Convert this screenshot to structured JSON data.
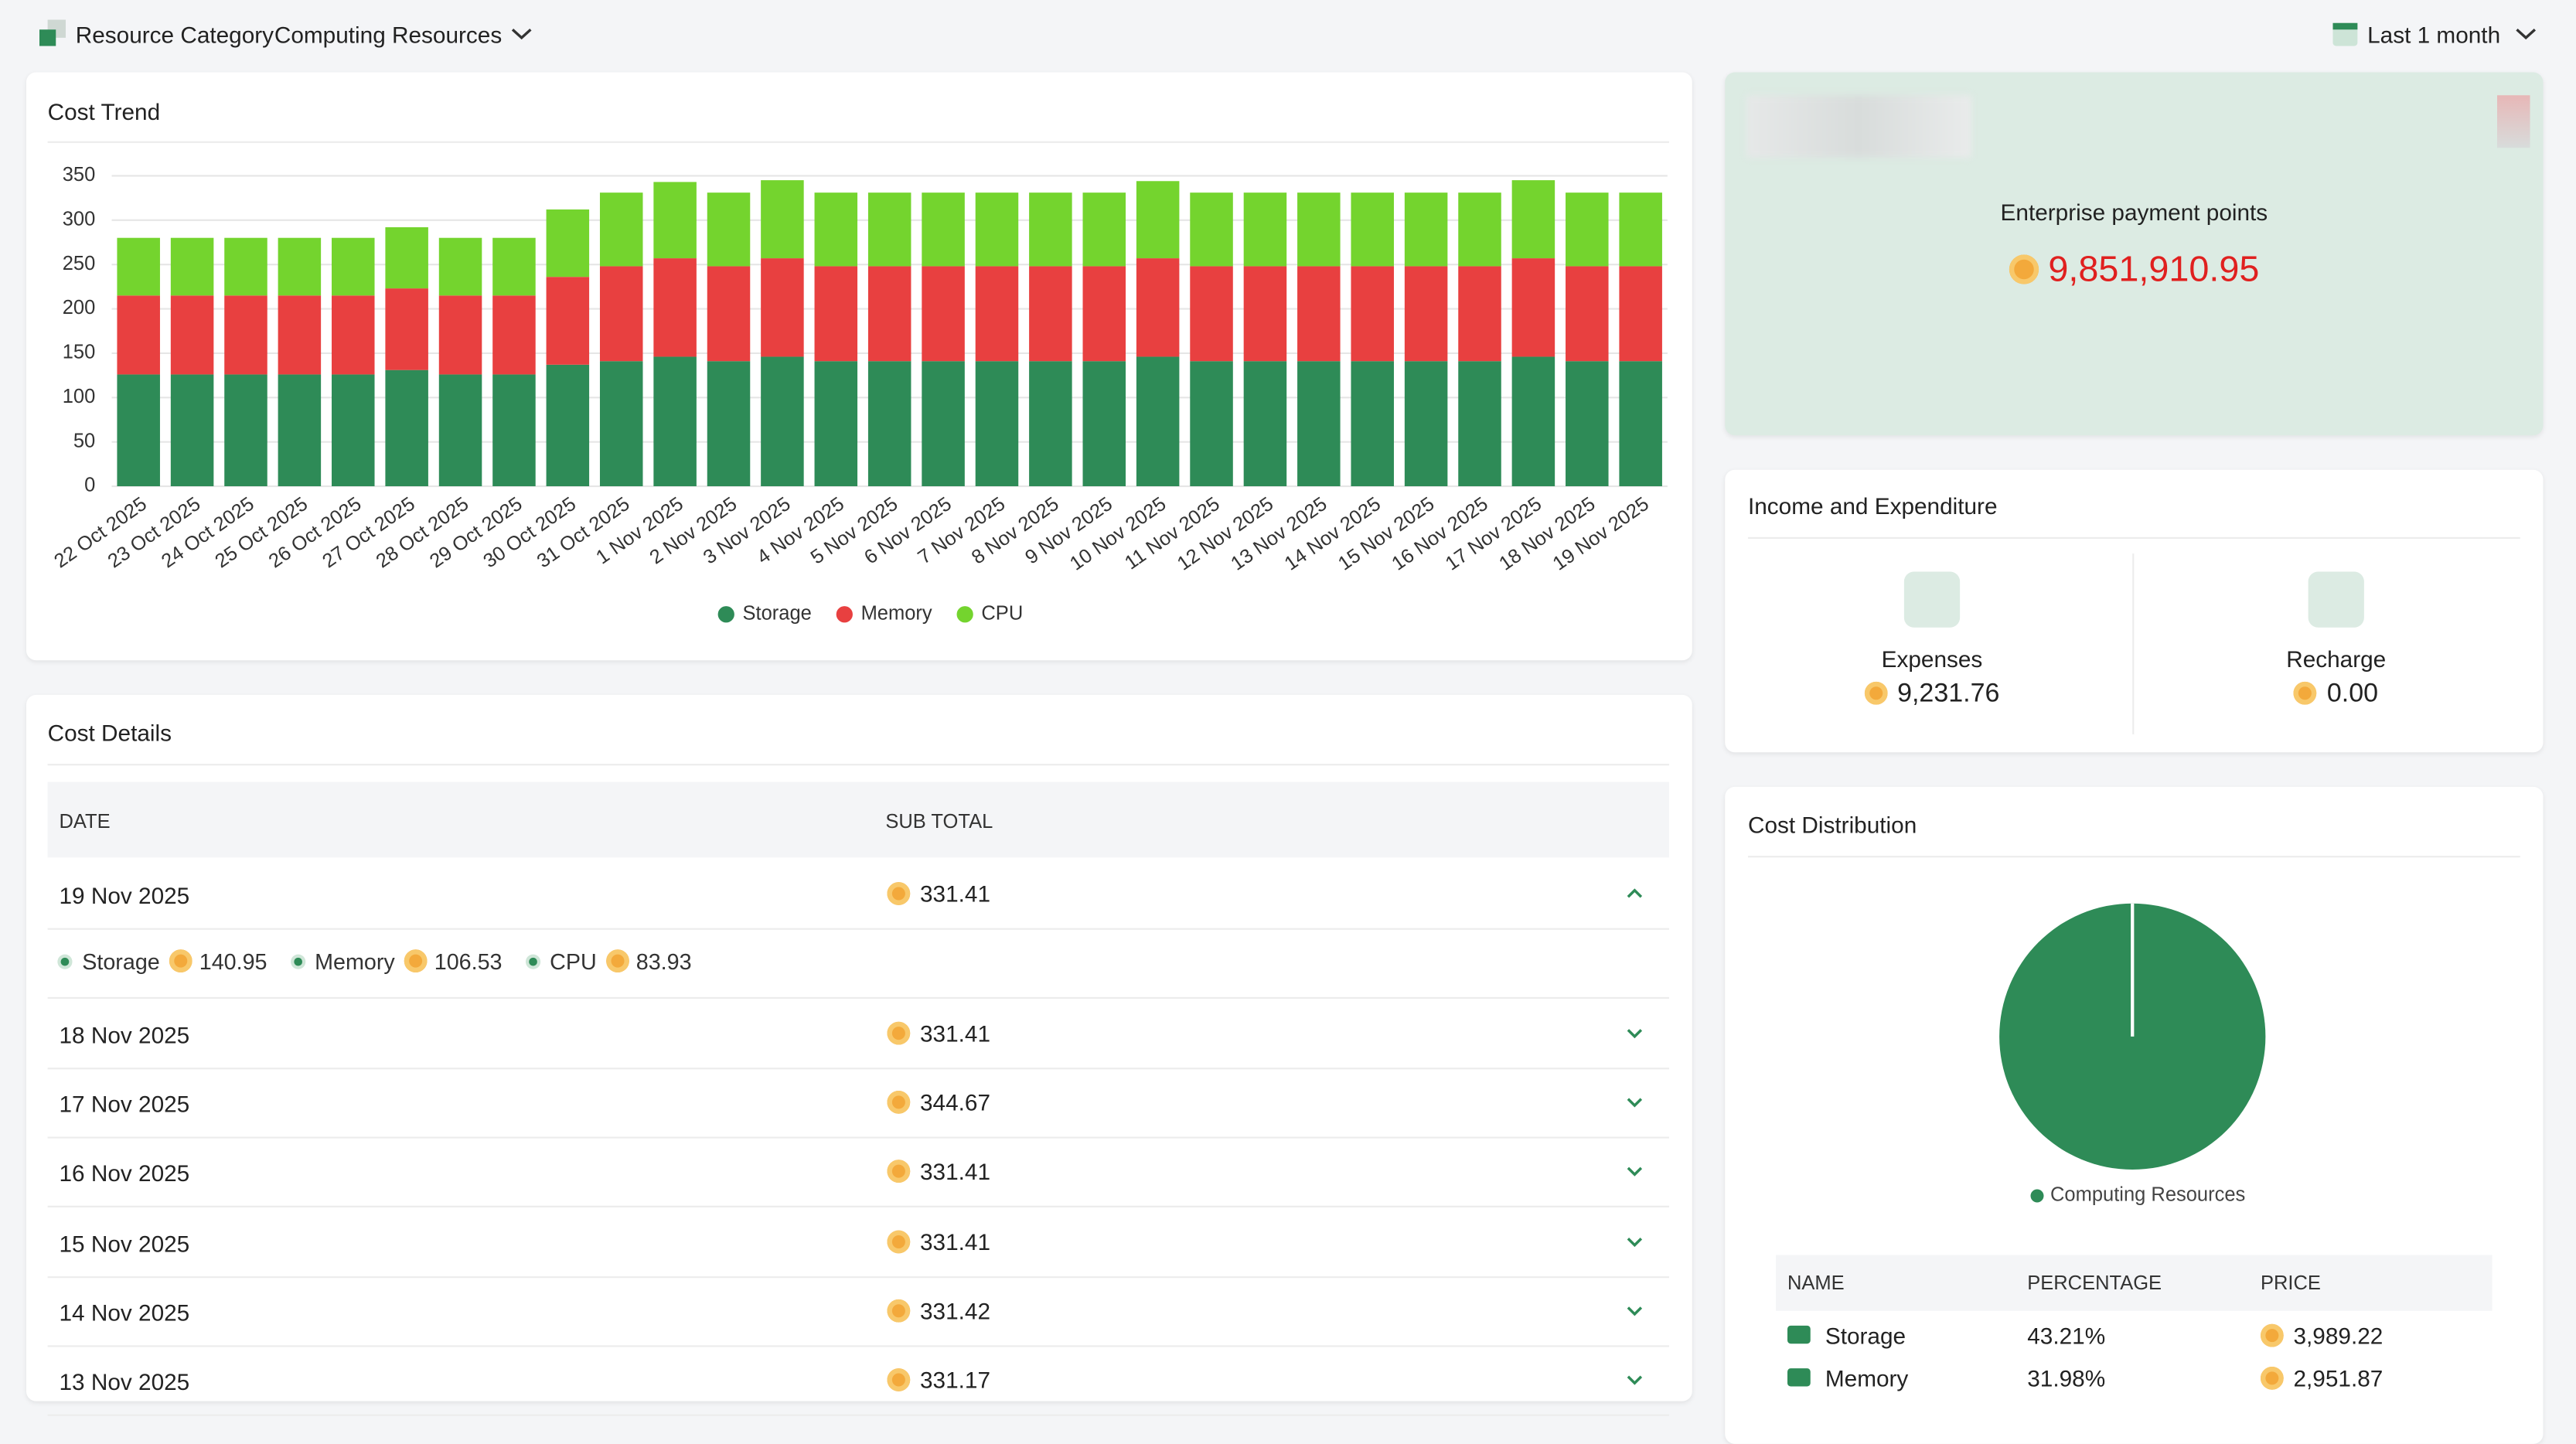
{
  "header": {
    "resource_label": "Resource Category",
    "resource_value": "Computing Resources",
    "period": "Last 1 month"
  },
  "enterprise": {
    "label": "Enterprise payment points",
    "value": "9,851,910.95"
  },
  "income": {
    "title": "Income and Expenditure",
    "expenses_label": "Expenses",
    "expenses_value": "9,231.76",
    "recharge_label": "Recharge",
    "recharge_value": "0.00"
  },
  "cost_details": {
    "title": "Cost Details",
    "columns": [
      "DATE",
      "SUB TOTAL"
    ],
    "rows": [
      {
        "date": "19 Nov 2025",
        "subtotal": "331.41"
      },
      {
        "date": "18 Nov 2025",
        "subtotal": "331.41"
      },
      {
        "date": "17 Nov 2025",
        "subtotal": "344.67"
      },
      {
        "date": "16 Nov 2025",
        "subtotal": "331.41"
      },
      {
        "date": "15 Nov 2025",
        "subtotal": "331.41"
      },
      {
        "date": "14 Nov 2025",
        "subtotal": "331.42"
      },
      {
        "date": "13 Nov 2025",
        "subtotal": "331.17"
      }
    ],
    "expanded": [
      {
        "name": "Storage",
        "value": "140.95"
      },
      {
        "name": "Memory",
        "value": "106.53"
      },
      {
        "name": "CPU",
        "value": "83.93"
      }
    ]
  },
  "distribution_table": {
    "columns": [
      "NAME",
      "PERCENTAGE",
      "PRICE"
    ],
    "rows": [
      [
        "Storage",
        "43.21%",
        "3,989.22"
      ],
      [
        "Memory",
        "31.98%",
        "2,951.87"
      ]
    ]
  },
  "chart_data": [
    {
      "type": "bar",
      "stacked": true,
      "title": "Cost Trend",
      "categories": [
        "22 Oct 2025",
        "23 Oct 2025",
        "24 Oct 2025",
        "25 Oct 2025",
        "26 Oct 2025",
        "27 Oct 2025",
        "28 Oct 2025",
        "29 Oct 2025",
        "30 Oct 2025",
        "31 Oct 2025",
        "1 Nov 2025",
        "2 Nov 2025",
        "3 Nov 2025",
        "4 Nov 2025",
        "5 Nov 2025",
        "6 Nov 2025",
        "7 Nov 2025",
        "8 Nov 2025",
        "9 Nov 2025",
        "10 Nov 2025",
        "11 Nov 2025",
        "12 Nov 2025",
        "13 Nov 2025",
        "14 Nov 2025",
        "15 Nov 2025",
        "16 Nov 2025",
        "17 Nov 2025",
        "18 Nov 2025",
        "19 Nov 2025"
      ],
      "series": [
        {
          "name": "Storage",
          "color": "#2e8b57",
          "values": [
            126,
            126,
            126,
            126,
            126,
            131,
            126,
            126,
            137,
            141,
            146,
            141,
            146,
            141,
            141,
            141,
            141,
            141,
            141,
            146,
            141,
            141,
            141,
            141,
            141,
            141,
            146,
            141,
            141
          ]
        },
        {
          "name": "Memory",
          "color": "#e84040",
          "values": [
            89,
            89,
            89,
            89,
            89,
            92,
            89,
            89,
            99,
            107,
            111,
            107,
            111,
            107,
            107,
            107,
            107,
            107,
            107,
            111,
            107,
            107,
            107,
            107,
            107,
            107,
            111,
            107,
            107
          ]
        },
        {
          "name": "CPU",
          "color": "#74d42e",
          "values": [
            65,
            65,
            65,
            65,
            65,
            69,
            65,
            65,
            76,
            83,
            86,
            83,
            88,
            83,
            83,
            83,
            83,
            83,
            83,
            87,
            83,
            83,
            83,
            83,
            83,
            83,
            88,
            83,
            83
          ]
        }
      ],
      "ylim": [
        0,
        350
      ],
      "yticks": [
        0,
        50,
        100,
        150,
        200,
        250,
        300,
        350
      ],
      "grid": true,
      "legend": "bottom"
    },
    {
      "type": "pie",
      "title": "Cost Distribution",
      "categories": [
        "Computing Resources"
      ],
      "values": [
        100
      ],
      "colors": [
        "#2e8b57"
      ],
      "legend": "bottom"
    }
  ]
}
